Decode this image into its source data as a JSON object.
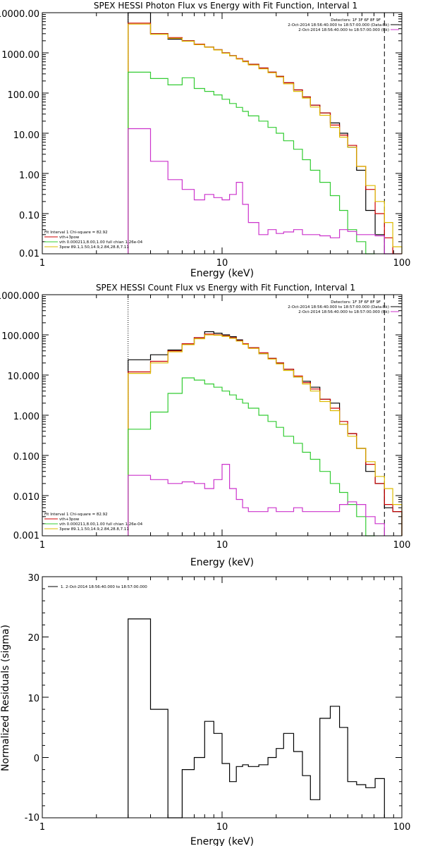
{
  "chart_data": [
    {
      "type": "line",
      "title": "SPEX HESSI Photon Flux vs Energy with Fit Function, Interval 1",
      "xlabel": "Energy (keV)",
      "ylabel": "",
      "xscale": "log",
      "yscale": "log",
      "xlim": [
        1,
        100
      ],
      "ylim": [
        0.01,
        10000
      ],
      "xticks": [
        "1",
        "10",
        "100"
      ],
      "yticks": [
        "0.01",
        "0.10",
        "1.00",
        "10.00",
        "100.00",
        "1000.00",
        "10000.00"
      ],
      "vlines": [
        {
          "x": 3,
          "style": "dotted"
        },
        {
          "x": 80,
          "style": "dashed"
        }
      ],
      "legend_top": {
        "header": "Detectors: 1F 3F 6F 8F 9F",
        "items": [
          {
            "text": "2-Oct-2014 18:56:40.000 to 18:57:00.000 (Data-Bk)",
            "color": "#000000"
          },
          {
            "text": "2-Oct-2014 18:56:40.000 to 18:57:00.000 (Bk)",
            "color": "#cc33cc"
          }
        ]
      },
      "legend_bottom": {
        "header": "Fit Interval 1    Chi-square = 82.92",
        "items": [
          {
            "text": "vth+3pow",
            "color": "#cc0000"
          },
          {
            "text": "vth 0.000211,8.00,1.00  full chian 1.26e-04",
            "color": "#33cc33"
          },
          {
            "text": "3pow 89.1,1.50,14.9,2.84,28.8,7.11",
            "color": "#ddbb00"
          }
        ]
      },
      "bin_edges": [
        3,
        4,
        5,
        6,
        7,
        8,
        9,
        10,
        11,
        12,
        13,
        14,
        16,
        18,
        20,
        22,
        25,
        28,
        31,
        35,
        40,
        45,
        50,
        56,
        63,
        71,
        80,
        89,
        100
      ],
      "series": [
        {
          "color": "#000000",
          "values": [
            10000,
            3000,
            2200,
            2000,
            1600,
            1400,
            1200,
            1000,
            850,
            720,
            620,
            520,
            420,
            330,
            260,
            180,
            120,
            80,
            50,
            32,
            18,
            10,
            4.5,
            1.2,
            0.12,
            0.03,
            null,
            null
          ]
        },
        {
          "color": "#cc0000",
          "values": [
            5500,
            3000,
            2400,
            2000,
            1650,
            1400,
            1200,
            1000,
            850,
            720,
            620,
            520,
            420,
            330,
            260,
            180,
            120,
            80,
            50,
            32,
            16,
            9,
            5,
            1.5,
            0.4,
            0.1,
            0.025,
            0.01
          ]
        },
        {
          "color": "#ddbb00",
          "values": [
            5200,
            2900,
            2300,
            1950,
            1600,
            1380,
            1180,
            980,
            840,
            700,
            600,
            500,
            400,
            320,
            250,
            170,
            110,
            75,
            45,
            28,
            14,
            8,
            4.5,
            1.5,
            0.5,
            0.2,
            0.06,
            0.015
          ]
        },
        {
          "color": "#33cc33",
          "values": [
            330,
            230,
            160,
            240,
            130,
            110,
            90,
            70,
            55,
            44,
            35,
            27,
            20,
            14,
            10,
            6.5,
            4,
            2.2,
            1.2,
            0.6,
            0.28,
            0.12,
            0.04,
            0.02,
            0.01,
            null,
            null,
            null
          ]
        },
        {
          "color": "#cc33cc",
          "values": [
            13,
            2,
            0.7,
            0.4,
            0.22,
            0.3,
            0.25,
            0.22,
            0.3,
            0.6,
            0.17,
            0.06,
            0.03,
            0.04,
            0.032,
            0.035,
            0.04,
            0.03,
            0.03,
            0.028,
            0.025,
            0.04,
            0.036,
            0.03,
            0.03,
            0.028,
            0.01,
            null
          ]
        }
      ]
    },
    {
      "type": "line",
      "title": "SPEX HESSI Count Flux vs Energy with Fit Function, Interval 1",
      "xlabel": "Energy (keV)",
      "ylabel": "",
      "xscale": "log",
      "yscale": "log",
      "xlim": [
        1,
        100
      ],
      "ylim": [
        0.001,
        1000
      ],
      "xticks": [
        "1",
        "10",
        "100"
      ],
      "yticks": [
        "0.001",
        "0.010",
        "0.100",
        "1.000",
        "10.000",
        "100.000",
        "1000.000"
      ],
      "vlines": [
        {
          "x": 3,
          "style": "dotted"
        },
        {
          "x": 80,
          "style": "dashed"
        }
      ],
      "legend_top": {
        "header": "Detectors: 1F 3F 6F 8F 9F",
        "items": [
          {
            "text": "2-Oct-2014 18:56:40.000 to 18:57:00.000 (Data-Bk)",
            "color": "#000000"
          },
          {
            "text": "2-Oct-2014 18:56:40.000 to 18:57:00.000 (Bk)",
            "color": "#cc33cc"
          }
        ]
      },
      "legend_bottom": {
        "header": "Fit Interval 1    Chi-square = 82.92",
        "items": [
          {
            "text": "vth+3pow",
            "color": "#cc0000"
          },
          {
            "text": "vth 0.000211,8.00,1.00  full chian 1.26e-04",
            "color": "#33cc33"
          },
          {
            "text": "3pow 89.1,1.50,14.9,2.84,28.8,7.11",
            "color": "#ddbb00"
          }
        ]
      },
      "bin_edges": [
        3,
        4,
        5,
        6,
        7,
        8,
        9,
        10,
        11,
        12,
        13,
        14,
        16,
        18,
        20,
        22,
        25,
        28,
        31,
        35,
        40,
        45,
        50,
        56,
        63,
        71,
        80,
        89,
        100
      ],
      "series": [
        {
          "color": "#000000",
          "values": [
            24,
            32,
            42,
            60,
            85,
            120,
            110,
            100,
            90,
            75,
            60,
            48,
            34,
            26,
            20,
            14,
            9,
            7,
            5,
            2.5,
            2,
            0.6,
            0.35,
            0.15,
            0.04,
            0.02,
            0.005,
            0.004
          ]
        },
        {
          "color": "#cc0000",
          "values": [
            12,
            22,
            40,
            60,
            85,
            105,
            100,
            95,
            85,
            72,
            60,
            48,
            36,
            26,
            20,
            14,
            9.5,
            6.5,
            4.5,
            2.5,
            1.5,
            0.7,
            0.35,
            0.15,
            0.06,
            0.02,
            0.006,
            0.004
          ]
        },
        {
          "color": "#ddbb00",
          "values": [
            11,
            20,
            38,
            57,
            80,
            100,
            98,
            92,
            82,
            70,
            58,
            46,
            34,
            25,
            19,
            13,
            9,
            6,
            4,
            2.2,
            1.3,
            0.6,
            0.3,
            0.15,
            0.07,
            0.03,
            0.015,
            0.006
          ]
        },
        {
          "color": "#33cc33",
          "values": [
            0.45,
            1.2,
            3.5,
            8.5,
            7.5,
            6,
            5,
            4,
            3.2,
            2.5,
            2,
            1.5,
            1,
            0.7,
            0.5,
            0.3,
            0.2,
            0.12,
            0.08,
            0.04,
            0.02,
            0.012,
            0.006,
            0.003,
            0.001,
            null,
            null,
            null
          ]
        },
        {
          "color": "#cc33cc",
          "values": [
            0.032,
            0.025,
            0.02,
            0.022,
            0.02,
            0.015,
            0.025,
            0.06,
            0.015,
            0.008,
            0.005,
            0.004,
            0.004,
            0.005,
            0.004,
            0.004,
            0.005,
            0.004,
            0.004,
            0.004,
            0.004,
            0.006,
            0.007,
            0.006,
            0.003,
            0.002,
            null,
            null
          ]
        }
      ]
    },
    {
      "type": "line",
      "title": "",
      "xlabel": "Energy (keV)",
      "ylabel": "Normalized Residuals (sigma)",
      "xscale": "log",
      "yscale": "linear",
      "xlim": [
        1,
        100
      ],
      "ylim": [
        -10,
        30
      ],
      "xticks": [
        "1",
        "10",
        "100"
      ],
      "yticks": [
        "-10",
        "0",
        "10",
        "20",
        "30"
      ],
      "legend_top": {
        "header": "",
        "items": [
          {
            "text": "1.  2-Oct-2014 18:56:40.000 to 18:57:00.000",
            "color": "#000000"
          }
        ]
      },
      "bin_edges": [
        3,
        4,
        5,
        6,
        7,
        8,
        9,
        10,
        11,
        12,
        13,
        14,
        16,
        18,
        20,
        22,
        25,
        28,
        31,
        35,
        40,
        45,
        50,
        56,
        63,
        71,
        80
      ],
      "series": [
        {
          "color": "#000000",
          "values": [
            23,
            8,
            -10.5,
            -2,
            0,
            6,
            4,
            -1,
            -4,
            -1.5,
            -1.2,
            -1.5,
            -1.2,
            0,
            1.5,
            4,
            1,
            -3,
            -7,
            6.5,
            8.5,
            5,
            -4,
            -4.5,
            -5,
            -3.5
          ]
        }
      ]
    }
  ]
}
